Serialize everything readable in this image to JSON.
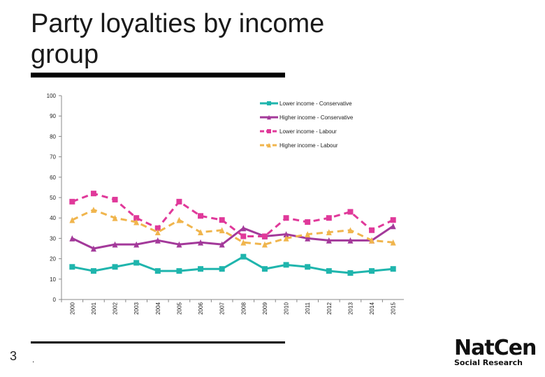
{
  "slide": {
    "title": "Party loyalties by income group",
    "number": "3",
    "footer_mark": ".",
    "logo_main": "NatCen",
    "logo_sub": "Social Research"
  },
  "chart_data": {
    "type": "line",
    "title": "",
    "xlabel": "",
    "ylabel": "",
    "ylim": [
      0,
      100
    ],
    "yticks": [
      0,
      10,
      20,
      30,
      40,
      50,
      60,
      70,
      80,
      90,
      100
    ],
    "grid": false,
    "legend_position": "top-right",
    "x": [
      "2000",
      "2001",
      "2002",
      "2003",
      "2004",
      "2005",
      "2006",
      "2007",
      "2008",
      "2009",
      "2010",
      "2011",
      "2012",
      "2013",
      "2014",
      "2015"
    ],
    "series": [
      {
        "name": "Lower income - Conservative",
        "color": "#1fb5ad",
        "dashed": false,
        "marker": "square",
        "values": [
          16,
          14,
          16,
          18,
          14,
          14,
          15,
          15,
          21,
          15,
          17,
          16,
          14,
          13,
          14,
          15
        ]
      },
      {
        "name": "Higher income - Conservative",
        "color": "#a3399a",
        "dashed": false,
        "marker": "triangle",
        "values": [
          30,
          25,
          27,
          27,
          29,
          27,
          28,
          27,
          35,
          31,
          32,
          30,
          29,
          29,
          29,
          36
        ]
      },
      {
        "name": "Lower income - Labour",
        "color": "#e0399a",
        "dashed": true,
        "marker": "square",
        "values": [
          48,
          52,
          49,
          40,
          35,
          48,
          41,
          39,
          31,
          31,
          40,
          38,
          40,
          43,
          34,
          39
        ]
      },
      {
        "name": "Higher income - Labour",
        "color": "#f0b54d",
        "dashed": true,
        "marker": "triangle",
        "values": [
          39,
          44,
          40,
          38,
          33,
          39,
          33,
          34,
          28,
          27,
          30,
          32,
          33,
          34,
          29,
          28
        ]
      }
    ]
  }
}
